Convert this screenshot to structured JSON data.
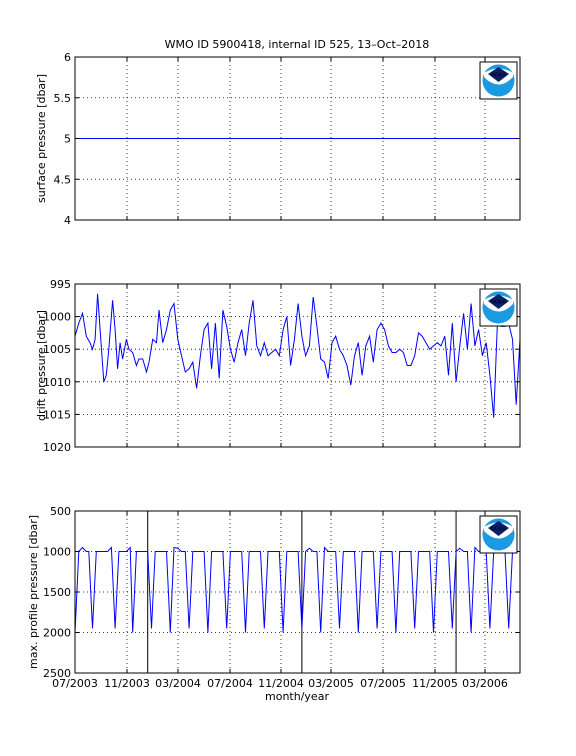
{
  "figure_title": "WMO ID 5900418, internal ID 525, 13–Oct–2018",
  "logo_text": "NOAA",
  "colors": {
    "line": "#0000ff",
    "axis": "#000000",
    "grid": "#000000",
    "logo_blue": "#1a9ae0",
    "logo_navy": "#0b1f6b"
  },
  "x_ticks": [
    "07/2003",
    "11/2003",
    "03/2004",
    "07/2004",
    "11/2004",
    "03/2005",
    "07/2005",
    "11/2005",
    "03/2006"
  ],
  "x_label": "month/year",
  "chart_data": [
    {
      "type": "line",
      "ylabel": "surface pressure [dbar]",
      "ylim": [
        4,
        6
      ],
      "y_reversed": false,
      "y_ticks": [
        "6",
        "5.5",
        "5",
        "4.5",
        "4"
      ],
      "y_tick_values": [
        6,
        5.5,
        5,
        4.5,
        4
      ],
      "x_range": [
        0,
        35.5
      ],
      "grid": true,
      "series": [
        {
          "x": [
            0,
            35.5
          ],
          "values": [
            5,
            5
          ]
        }
      ]
    },
    {
      "type": "line",
      "ylabel": "drift pressure [dbar]",
      "ylim": [
        995,
        1020
      ],
      "y_reversed": true,
      "y_ticks": [
        "995",
        "1000",
        "1005",
        "1010",
        "1015",
        "1020"
      ],
      "y_tick_values": [
        995,
        1000,
        1005,
        1010,
        1015,
        1020
      ],
      "x_range": [
        0,
        35.5
      ],
      "grid": true,
      "series": [
        {
          "x": [
            0,
            0.3,
            0.6,
            0.9,
            1.2,
            1.4,
            1.6,
            1.8,
            2.0,
            2.3,
            2.5,
            2.7,
            3.0,
            3.2,
            3.4,
            3.6,
            3.8,
            4.1,
            4.3,
            4.6,
            4.9,
            5.1,
            5.4,
            5.7,
            5.9,
            6.2,
            6.5,
            6.7,
            7.0,
            7.3,
            7.6,
            7.9,
            8.2,
            8.5,
            8.8,
            9.1,
            9.4,
            9.7,
            10.0,
            10.3,
            10.6,
            10.9,
            11.2,
            11.5,
            11.8,
            12.1,
            12.4,
            12.7,
            13.0,
            13.3,
            13.6,
            13.9,
            14.2,
            14.5,
            14.8,
            15.1,
            15.4,
            15.7,
            16.0,
            16.3,
            16.6,
            16.9,
            17.2,
            17.5,
            17.8,
            18.1,
            18.4,
            18.7,
            19.0,
            19.3,
            19.6,
            19.9,
            20.2,
            20.5,
            20.8,
            21.1,
            21.4,
            21.7,
            22.0,
            22.3,
            22.6,
            22.9,
            23.2,
            23.5,
            23.8,
            24.1,
            24.4,
            24.7,
            25.0,
            25.3,
            25.6,
            25.9,
            26.2,
            26.5,
            26.8,
            27.1,
            27.4,
            27.7,
            28.0,
            28.3,
            28.6,
            28.9,
            29.2,
            29.5,
            29.8,
            30.1,
            30.4,
            30.7,
            31.0,
            31.3,
            31.6,
            31.9,
            32.2,
            32.5,
            32.8,
            33.1,
            33.4,
            33.7,
            34.0,
            34.3,
            34.6,
            34.9,
            35.2,
            35.5
          ],
          "values": [
            1003,
            1001,
            999.5,
            1003,
            1004,
            1005,
            1003.5,
            996.5,
            1002,
            1010,
            1009,
            1005,
            997.5,
            1002,
            1008,
            1004,
            1006.5,
            1003.5,
            1005,
            1005.5,
            1007.5,
            1006.5,
            1006.5,
            1008.5,
            1007,
            1003.5,
            1004,
            999,
            1004,
            1002,
            999,
            998,
            1003.5,
            1006,
            1008.5,
            1008,
            1007,
            1011,
            1006,
            1002,
            1001,
            1008,
            1001,
            1009.5,
            999,
            1001.5,
            1005,
            1007,
            1004,
            1002,
            1006,
            1001,
            997.5,
            1004.5,
            1006,
            1004,
            1006,
            1005.5,
            1005,
            1006,
            1002,
            1000,
            1007.5,
            1003.5,
            998,
            1003,
            1006,
            1004.5,
            997,
            1001.5,
            1006.5,
            1007,
            1009.5,
            1004,
            1003,
            1005,
            1006,
            1007.5,
            1010.5,
            1006,
            1004,
            1009,
            1004.5,
            1003,
            1007,
            1002,
            1001,
            1002,
            1004.5,
            1005.5,
            1005.5,
            1005,
            1005.5,
            1007.5,
            1007.5,
            1006,
            1002.5,
            1003,
            1004,
            1005,
            1004.5,
            1004,
            1004.5,
            1003,
            1009,
            1001,
            1010,
            1004.5,
            999.5,
            1005,
            998,
            1004.5,
            1002,
            1006,
            1004,
            1009,
            1015.5,
            1001,
            1001.5,
            1001.5,
            1001,
            1003.5,
            1013.5,
            1003.5
          ]
        }
      ]
    },
    {
      "type": "line",
      "ylabel": "max. profile pressure [dbar]",
      "ylim": [
        500,
        2500
      ],
      "y_reversed": true,
      "y_ticks": [
        "500",
        "1000",
        "1500",
        "2000",
        "2500"
      ],
      "y_tick_values": [
        500,
        1000,
        1500,
        2000,
        2500
      ],
      "x_range": [
        0,
        35.5
      ],
      "grid": true,
      "vertical_markers": [
        5.8,
        18.1,
        30.4
      ],
      "series": [
        {
          "x": [
            0,
            0.3,
            0.6,
            0.9,
            1.1,
            1.4,
            1.7,
            2.0,
            2.3,
            2.6,
            2.9,
            3.2,
            3.5,
            3.8,
            4.1,
            4.4,
            4.6,
            4.9,
            5.2,
            5.5,
            5.8,
            6.1,
            6.4,
            6.7,
            7.0,
            7.3,
            7.6,
            7.9,
            8.2,
            8.5,
            8.8,
            9.1,
            9.4,
            9.7,
            10.0,
            10.3,
            10.6,
            10.9,
            11.2,
            11.5,
            11.8,
            12.1,
            12.4,
            12.7,
            13.0,
            13.3,
            13.6,
            13.9,
            14.2,
            14.5,
            14.8,
            15.1,
            15.4,
            15.7,
            16.0,
            16.3,
            16.6,
            16.9,
            17.2,
            17.5,
            17.8,
            18.1,
            18.4,
            18.7,
            19.0,
            19.3,
            19.6,
            19.9,
            20.2,
            20.5,
            20.8,
            21.1,
            21.4,
            21.7,
            22.0,
            22.3,
            22.6,
            22.9,
            23.2,
            23.5,
            23.8,
            24.1,
            24.4,
            24.7,
            25.0,
            25.3,
            25.6,
            25.9,
            26.2,
            26.5,
            26.8,
            27.1,
            27.4,
            27.7,
            28.0,
            28.3,
            28.6,
            28.9,
            29.2,
            29.5,
            29.8,
            30.1,
            30.4,
            30.7,
            31.0,
            31.3,
            31.6,
            31.9,
            32.2,
            32.5,
            32.8,
            33.1,
            33.4,
            33.7,
            34.0,
            34.3,
            34.6,
            34.9,
            35.2,
            35.5
          ],
          "values": [
            2000,
            1000,
            950,
            1000,
            1000,
            1950,
            1000,
            1000,
            1000,
            1000,
            950,
            1950,
            1000,
            1000,
            1000,
            950,
            2000,
            1000,
            1000,
            1000,
            1000,
            1950,
            1000,
            1000,
            1000,
            1000,
            2000,
            950,
            960,
            1000,
            1000,
            1950,
            1000,
            1000,
            1000,
            1000,
            2000,
            1000,
            1000,
            1000,
            1000,
            1950,
            1000,
            1000,
            1000,
            1000,
            2000,
            1000,
            1000,
            1000,
            1000,
            1950,
            1000,
            1000,
            1000,
            1000,
            2000,
            1000,
            1000,
            1000,
            1000,
            1950,
            1000,
            960,
            1000,
            1000,
            2000,
            950,
            1000,
            1000,
            1000,
            1950,
            1000,
            1000,
            1000,
            1000,
            2000,
            1000,
            1000,
            1000,
            1000,
            1950,
            1000,
            1000,
            1000,
            1000,
            2000,
            1000,
            1000,
            1000,
            1000,
            1950,
            1000,
            1000,
            1000,
            1000,
            2000,
            1000,
            1000,
            1000,
            1000,
            1950,
            1000,
            960,
            1000,
            1000,
            2000,
            950,
            1000,
            1000,
            1000,
            1950,
            1000,
            1000,
            1000,
            1000,
            1950,
            1000,
            1000,
            1000
          ]
        }
      ]
    }
  ]
}
